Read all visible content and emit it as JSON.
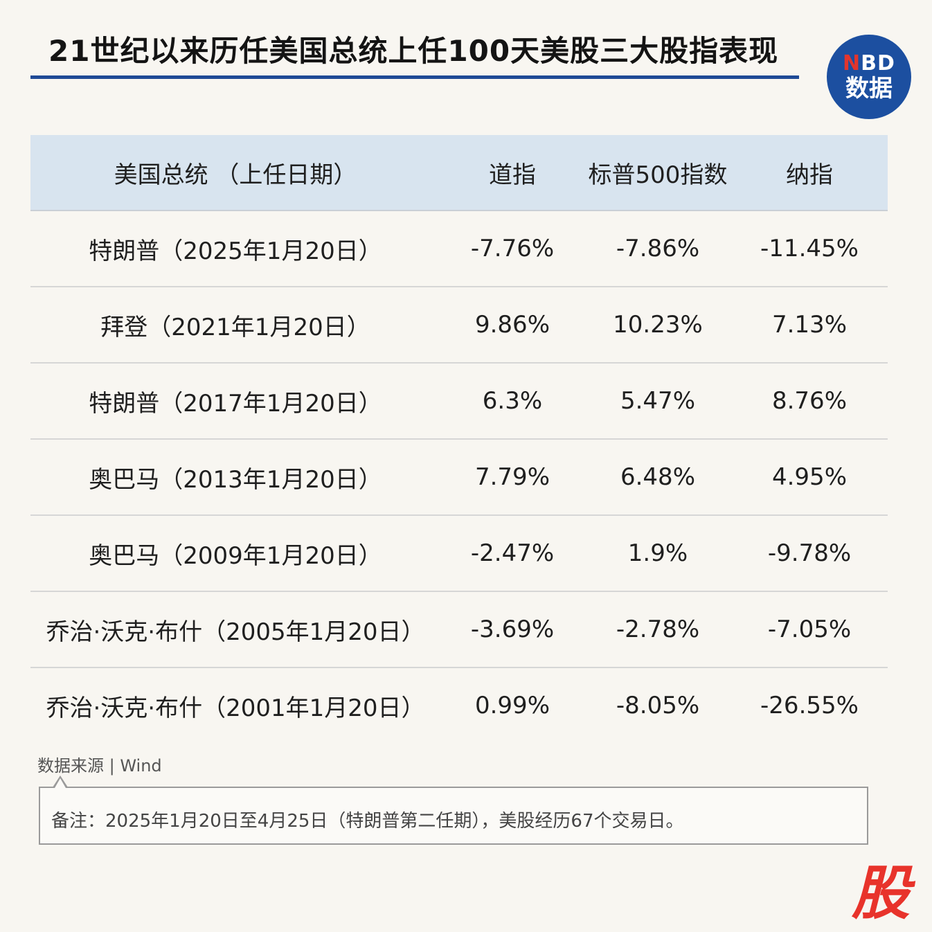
{
  "header": {
    "title": "21世纪以来历任美国总统上任100天美股三大股指表现",
    "logo_top_n": "N",
    "logo_top_rest": "BD",
    "logo_bottom": "数据"
  },
  "chart_data": {
    "type": "table",
    "columns": [
      "美国总统 （上任日期）",
      "道指",
      "标普500指数",
      "纳指"
    ],
    "rows": [
      [
        "特朗普（2025年1月20日）",
        "-7.76%",
        "-7.86%",
        "-11.45%"
      ],
      [
        "拜登（2021年1月20日）",
        "9.86%",
        "10.23%",
        "7.13%"
      ],
      [
        "特朗普（2017年1月20日）",
        "6.3%",
        "5.47%",
        "8.76%"
      ],
      [
        "奥巴马（2013年1月20日）",
        "7.79%",
        "6.48%",
        "4.95%"
      ],
      [
        "奥巴马（2009年1月20日）",
        "-2.47%",
        "1.9%",
        "-9.78%"
      ],
      [
        "乔治·沃克·布什（2005年1月20日）",
        "-3.69%",
        "-2.78%",
        "-7.05%"
      ],
      [
        "乔治·沃克·布什（2001年1月20日）",
        "0.99%",
        "-8.05%",
        "-26.55%"
      ]
    ]
  },
  "footer": {
    "source": "数据来源 | Wind",
    "note": "备注：2025年1月20日至4月25日（特朗普第二任期），美股经历67个交易日。",
    "brand": "股"
  },
  "colors": {
    "accent": "#1f4a96",
    "header_bg": "#d8e4ef",
    "logo_bg": "#1c4fa0",
    "brand_red": "#e8332b"
  }
}
